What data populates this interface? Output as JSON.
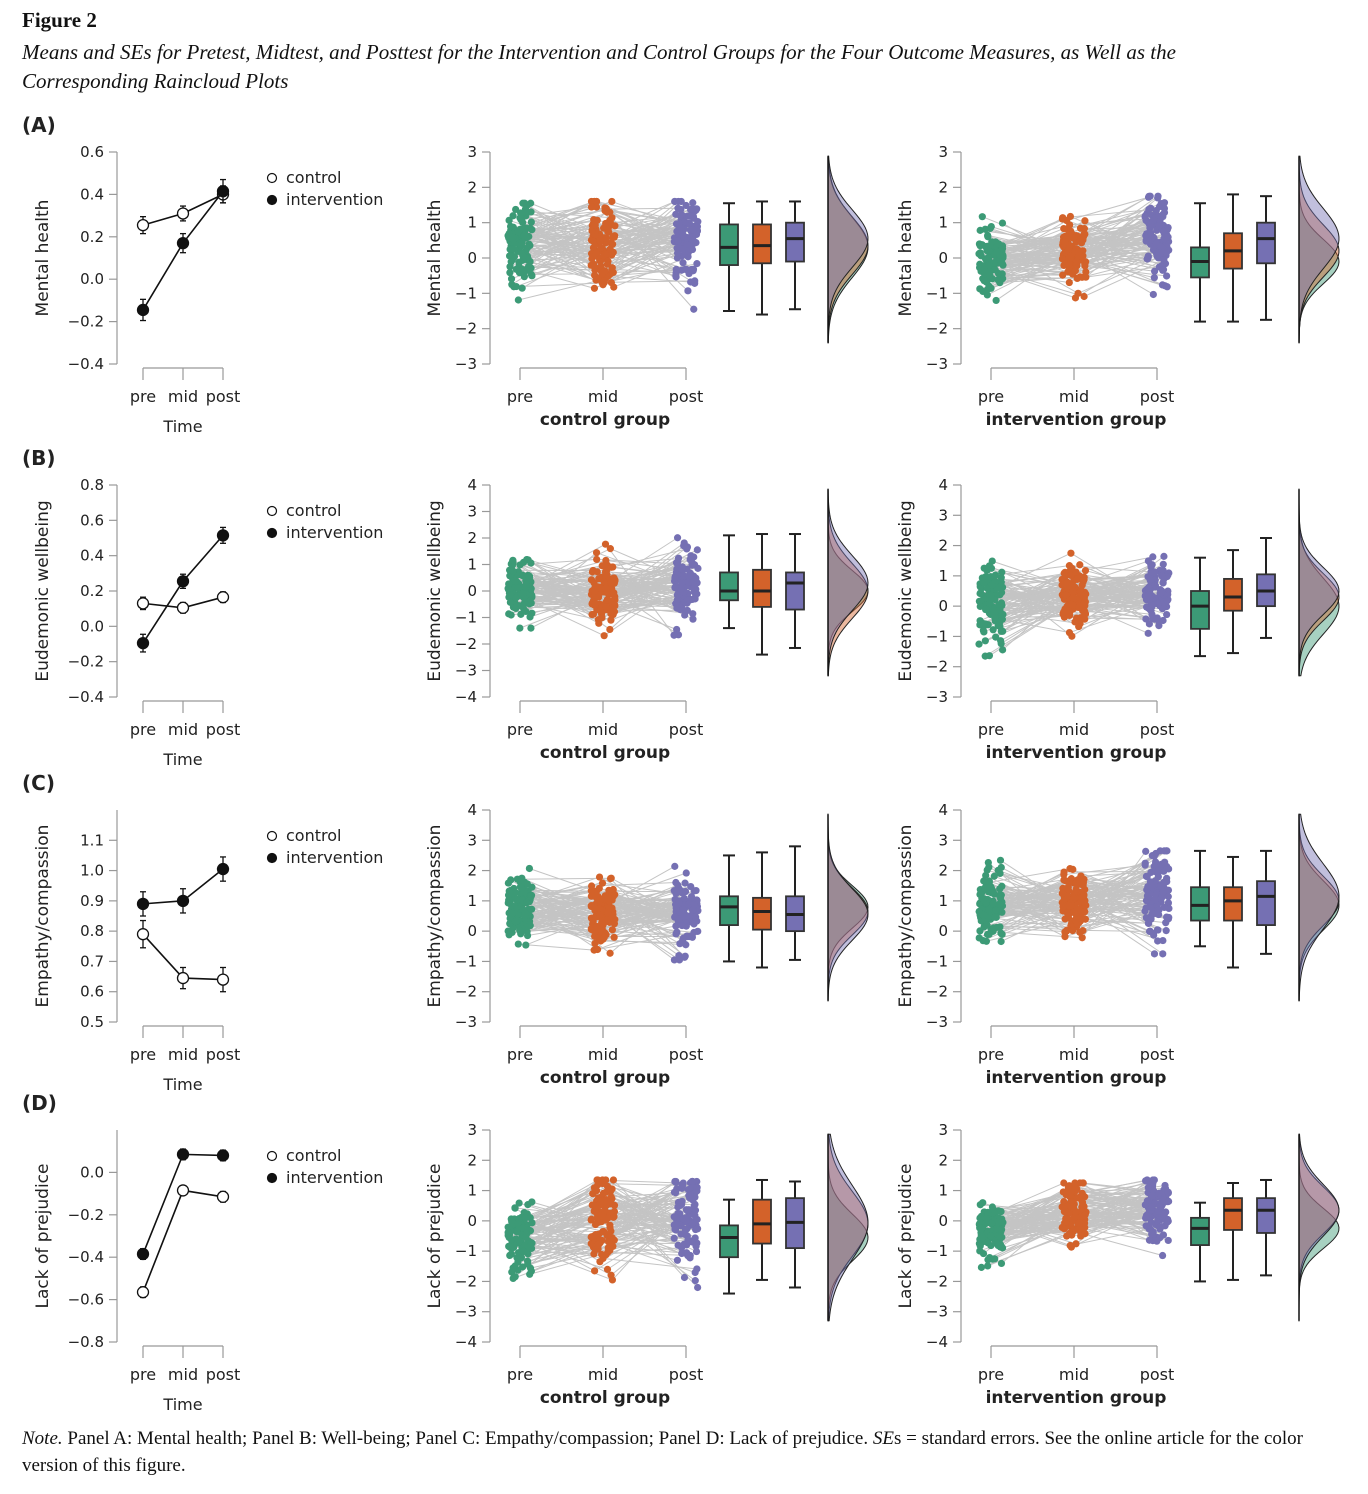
{
  "header": {
    "figure_label": "Figure 2",
    "title_line1": "Means and SEs for Pretest, Midtest, and Posttest for the Intervention and Control Groups for the Four Outcome Measures, as Well as the",
    "title_line2": "Corresponding Raincloud Plots"
  },
  "note": {
    "label": "Note.",
    "text1": "  Panel A: Mental health; Panel B: Well-being; Panel C: Empathy/compassion; Panel D: Lack of prejudice. ",
    "ses": "SE",
    "text2": "s = standard errors. See the online article for the color version of this figure."
  },
  "colors": {
    "pre": "#3c9a76",
    "mid": "#d3622a",
    "post": "#7570b3",
    "lines": "#c4c4c4",
    "density_overlap": "#8c7b7e"
  },
  "chart_data": [
    {
      "panel": "(A)",
      "ylabel": "Mental health",
      "means": {
        "type": "line",
        "categories": [
          "pre",
          "mid",
          "post"
        ],
        "xlabel": "Time",
        "ylim": [
          -0.4,
          0.6
        ],
        "yticks": [
          "0.6",
          "0.4",
          "0.2",
          "0.0",
          "−0.2",
          "−0.4"
        ],
        "series": [
          {
            "name": "control",
            "marker": "open",
            "values": [
              0.255,
              0.31,
              0.4
            ],
            "se": [
              0.04,
              0.035,
              0.04
            ]
          },
          {
            "name": "intervention",
            "marker": "filled",
            "values": [
              -0.145,
              0.17,
              0.415
            ],
            "se": [
              0.05,
              0.045,
              0.055
            ]
          }
        ]
      },
      "control": {
        "type": "raincloud",
        "xlabel": "control group",
        "categories": [
          "pre",
          "mid",
          "post"
        ],
        "ylim": [
          -3,
          3
        ],
        "yticks": [
          "3",
          "2",
          "1",
          "0",
          "−1",
          "−2",
          "−3"
        ],
        "boxes": [
          {
            "time": "pre",
            "whisker_low": -1.5,
            "q1": -0.2,
            "median": 0.3,
            "q3": 0.95,
            "whisker_high": 1.55
          },
          {
            "time": "mid",
            "whisker_low": -1.6,
            "q1": -0.15,
            "median": 0.35,
            "q3": 0.95,
            "whisker_high": 1.6
          },
          {
            "time": "post",
            "whisker_low": -1.45,
            "q1": -0.1,
            "median": 0.55,
            "q3": 1.0,
            "whisker_high": 1.6
          }
        ]
      },
      "intervention": {
        "type": "raincloud",
        "xlabel": "intervention group",
        "categories": [
          "pre",
          "mid",
          "post"
        ],
        "ylim": [
          -3,
          3
        ],
        "yticks": [
          "3",
          "2",
          "1",
          "0",
          "−1",
          "−2",
          "−3"
        ],
        "boxes": [
          {
            "time": "pre",
            "whisker_low": -1.8,
            "q1": -0.55,
            "median": -0.1,
            "q3": 0.3,
            "whisker_high": 1.55
          },
          {
            "time": "mid",
            "whisker_low": -1.8,
            "q1": -0.3,
            "median": 0.2,
            "q3": 0.7,
            "whisker_high": 1.8
          },
          {
            "time": "post",
            "whisker_low": -1.75,
            "q1": -0.15,
            "median": 0.55,
            "q3": 1.0,
            "whisker_high": 1.75
          }
        ]
      }
    },
    {
      "panel": "(B)",
      "ylabel": "Eudemonic wellbeing",
      "means": {
        "type": "line",
        "categories": [
          "pre",
          "mid",
          "post"
        ],
        "xlabel": "Time",
        "ylim": [
          -0.4,
          0.8
        ],
        "yticks": [
          "0.8",
          "0.6",
          "0.4",
          "0.2",
          "0.0",
          "−0.2",
          "−0.4"
        ],
        "series": [
          {
            "name": "control",
            "marker": "open",
            "values": [
              0.13,
              0.105,
              0.165
            ],
            "se": [
              0.035,
              0.03,
              0.03
            ]
          },
          {
            "name": "intervention",
            "marker": "filled",
            "values": [
              -0.095,
              0.255,
              0.515
            ],
            "se": [
              0.05,
              0.04,
              0.045
            ]
          }
        ]
      },
      "control": {
        "type": "raincloud",
        "xlabel": "control group",
        "categories": [
          "pre",
          "mid",
          "post"
        ],
        "ylim": [
          -4,
          4
        ],
        "yticks": [
          "4",
          "3",
          "2",
          "1",
          "0",
          "−1",
          "−2",
          "−3",
          "−4"
        ],
        "boxes": [
          {
            "time": "pre",
            "whisker_low": -1.4,
            "q1": -0.35,
            "median": 0.0,
            "q3": 0.7,
            "whisker_high": 2.1
          },
          {
            "time": "mid",
            "whisker_low": -2.4,
            "q1": -0.6,
            "median": 0.0,
            "q3": 0.8,
            "whisker_high": 2.15
          },
          {
            "time": "post",
            "whisker_low": -2.15,
            "q1": -0.7,
            "median": 0.3,
            "q3": 0.7,
            "whisker_high": 2.15
          }
        ]
      },
      "intervention": {
        "type": "raincloud",
        "xlabel": "intervention group",
        "categories": [
          "pre",
          "mid",
          "post"
        ],
        "ylim": [
          -3,
          4
        ],
        "yticks": [
          "4",
          "3",
          "2",
          "1",
          "0",
          "−1",
          "−2",
          "−3"
        ],
        "boxes": [
          {
            "time": "pre",
            "whisker_low": -1.65,
            "q1": -0.75,
            "median": 0.0,
            "q3": 0.5,
            "whisker_high": 1.6
          },
          {
            "time": "mid",
            "whisker_low": -1.55,
            "q1": -0.15,
            "median": 0.3,
            "q3": 0.9,
            "whisker_high": 1.85
          },
          {
            "time": "post",
            "whisker_low": -1.05,
            "q1": 0.0,
            "median": 0.5,
            "q3": 1.05,
            "whisker_high": 2.25
          }
        ]
      }
    },
    {
      "panel": "(C)",
      "ylabel": "Empathy/compassion",
      "means": {
        "type": "line",
        "categories": [
          "pre",
          "mid",
          "post"
        ],
        "xlabel": "Time",
        "ylim": [
          0.5,
          1.2
        ],
        "yticks": [
          "1.1",
          "1.0",
          "0.9",
          "0.8",
          "0.7",
          "0.6",
          "0.5"
        ],
        "series": [
          {
            "name": "control",
            "marker": "open",
            "values": [
              0.79,
              0.645,
              0.64
            ],
            "se": [
              0.045,
              0.035,
              0.04
            ]
          },
          {
            "name": "intervention",
            "marker": "filled",
            "values": [
              0.89,
              0.9,
              1.005
            ],
            "se": [
              0.04,
              0.04,
              0.04
            ]
          }
        ]
      },
      "control": {
        "type": "raincloud",
        "xlabel": "control group",
        "categories": [
          "pre",
          "mid",
          "post"
        ],
        "ylim": [
          -3,
          4
        ],
        "yticks": [
          "4",
          "3",
          "2",
          "1",
          "0",
          "−1",
          "−2",
          "−3"
        ],
        "boxes": [
          {
            "time": "pre",
            "whisker_low": -1.0,
            "q1": 0.2,
            "median": 0.8,
            "q3": 1.15,
            "whisker_high": 2.5
          },
          {
            "time": "mid",
            "whisker_low": -1.2,
            "q1": 0.05,
            "median": 0.65,
            "q3": 1.1,
            "whisker_high": 2.6
          },
          {
            "time": "post",
            "whisker_low": -0.95,
            "q1": 0.0,
            "median": 0.55,
            "q3": 1.15,
            "whisker_high": 2.8
          }
        ]
      },
      "intervention": {
        "type": "raincloud",
        "xlabel": "intervention group",
        "categories": [
          "pre",
          "mid",
          "post"
        ],
        "ylim": [
          -3,
          4
        ],
        "yticks": [
          "4",
          "3",
          "2",
          "1",
          "0",
          "−1",
          "−2",
          "−3"
        ],
        "boxes": [
          {
            "time": "pre",
            "whisker_low": -0.5,
            "q1": 0.35,
            "median": 0.85,
            "q3": 1.45,
            "whisker_high": 2.65
          },
          {
            "time": "mid",
            "whisker_low": -1.2,
            "q1": 0.35,
            "median": 1.0,
            "q3": 1.45,
            "whisker_high": 2.45
          },
          {
            "time": "post",
            "whisker_low": -0.75,
            "q1": 0.2,
            "median": 1.15,
            "q3": 1.65,
            "whisker_high": 2.65
          }
        ]
      }
    },
    {
      "panel": "(D)",
      "ylabel": "Lack of prejudice",
      "means": {
        "type": "line",
        "categories": [
          "pre",
          "mid",
          "post"
        ],
        "xlabel": "Time",
        "ylim": [
          -0.8,
          0.2
        ],
        "yticks": [
          "0.0",
          "−0.2",
          "−0.4",
          "−0.6",
          "−0.8"
        ],
        "series": [
          {
            "name": "control",
            "marker": "open",
            "values": [
              -0.565,
              -0.085,
              -0.115
            ],
            "se": [
              0.025,
              0.02,
              0.025
            ]
          },
          {
            "name": "intervention",
            "marker": "filled",
            "values": [
              -0.385,
              0.085,
              0.08
            ],
            "se": [
              0.025,
              0.025,
              0.025
            ]
          }
        ]
      },
      "control": {
        "type": "raincloud",
        "xlabel": "control group",
        "categories": [
          "pre",
          "mid",
          "post"
        ],
        "ylim": [
          -4,
          3
        ],
        "yticks": [
          "3",
          "2",
          "1",
          "0",
          "−1",
          "−2",
          "−3",
          "−4"
        ],
        "boxes": [
          {
            "time": "pre",
            "whisker_low": -2.4,
            "q1": -1.2,
            "median": -0.55,
            "q3": -0.15,
            "whisker_high": 0.7
          },
          {
            "time": "mid",
            "whisker_low": -1.95,
            "q1": -0.75,
            "median": -0.1,
            "q3": 0.7,
            "whisker_high": 1.35
          },
          {
            "time": "post",
            "whisker_low": -2.2,
            "q1": -0.9,
            "median": -0.05,
            "q3": 0.75,
            "whisker_high": 1.3
          }
        ]
      },
      "intervention": {
        "type": "raincloud",
        "xlabel": "intervention group",
        "categories": [
          "pre",
          "mid",
          "post"
        ],
        "ylim": [
          -4,
          3
        ],
        "yticks": [
          "3",
          "2",
          "1",
          "0",
          "−1",
          "−2",
          "−3",
          "−4"
        ],
        "boxes": [
          {
            "time": "pre",
            "whisker_low": -2.0,
            "q1": -0.8,
            "median": -0.25,
            "q3": 0.1,
            "whisker_high": 0.6
          },
          {
            "time": "mid",
            "whisker_low": -1.95,
            "q1": -0.3,
            "median": 0.35,
            "q3": 0.75,
            "whisker_high": 1.25
          },
          {
            "time": "post",
            "whisker_low": -1.8,
            "q1": -0.4,
            "median": 0.35,
            "q3": 0.75,
            "whisker_high": 1.35
          }
        ]
      }
    }
  ]
}
